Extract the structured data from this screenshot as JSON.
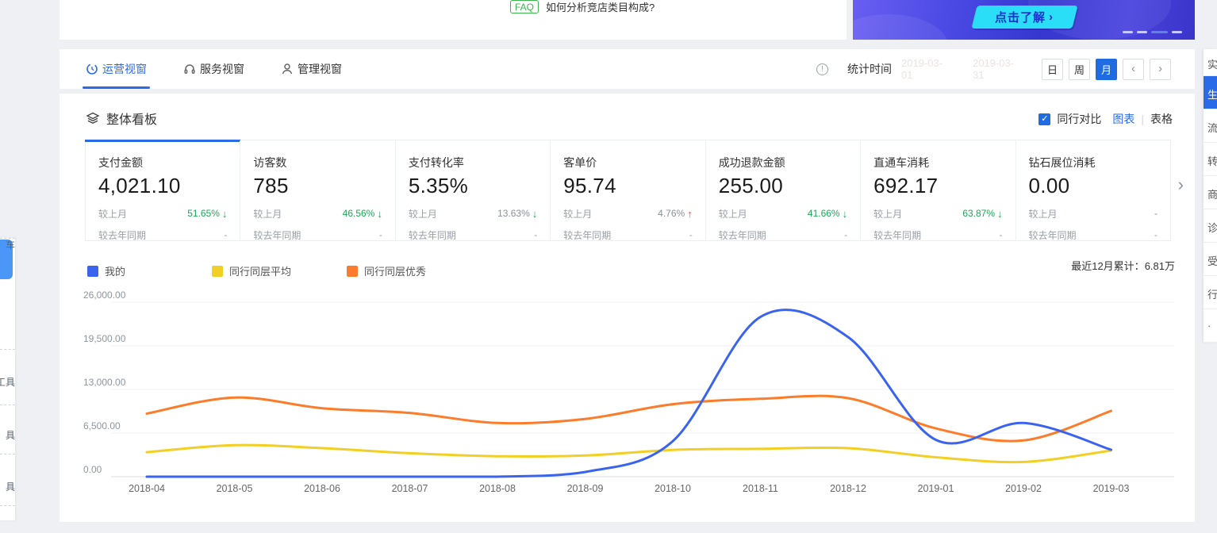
{
  "top_notice": {
    "faq_badge": "FAQ",
    "question": "如何分析竞店类目构成?"
  },
  "banner": {
    "cta": "点击了解",
    "cta_arrow": "›",
    "indicator_count": 4,
    "active_indicator": 2
  },
  "view_tabs": [
    {
      "label": "运营视窗",
      "active": true
    },
    {
      "label": "服务视窗",
      "active": false
    },
    {
      "label": "管理视窗",
      "active": false
    }
  ],
  "stats_time": {
    "info_glyph": "!",
    "label": "统计时间",
    "range_start": "2019-03-01",
    "range_end": "2019-03-31",
    "granularity": [
      "日",
      "周",
      "月"
    ],
    "active_granularity": "月",
    "prev_glyph": "‹",
    "next_glyph": "›"
  },
  "board": {
    "title": "整体看板",
    "compare_checked": true,
    "compare_label": "同行对比",
    "chart_toggle": "图表",
    "table_toggle": "表格",
    "toggle_separator": "|",
    "summary_label": "最近12月累计：",
    "summary_value": "6.81万",
    "next_cards_glyph": "›"
  },
  "metrics": [
    {
      "name": "支付金额",
      "value": "4,021.10",
      "mom_label": "较上月",
      "mom_value": "51.65%",
      "mom_dir": "down",
      "mom_green": true,
      "yoy_label": "较去年同期",
      "yoy_value": "-",
      "selected": true
    },
    {
      "name": "访客数",
      "value": "785",
      "mom_label": "较上月",
      "mom_value": "46.56%",
      "mom_dir": "down",
      "mom_green": true,
      "yoy_label": "较去年同期",
      "yoy_value": "-",
      "selected": false
    },
    {
      "name": "支付转化率",
      "value": "5.35%",
      "mom_label": "较上月",
      "mom_value": "13.63%",
      "mom_dir": "down",
      "mom_green": false,
      "yoy_label": "较去年同期",
      "yoy_value": "-",
      "selected": false
    },
    {
      "name": "客单价",
      "value": "95.74",
      "mom_label": "较上月",
      "mom_value": "4.76%",
      "mom_dir": "up",
      "mom_green": false,
      "yoy_label": "较去年同期",
      "yoy_value": "-",
      "selected": false
    },
    {
      "name": "成功退款金额",
      "value": "255.00",
      "mom_label": "较上月",
      "mom_value": "41.66%",
      "mom_dir": "down",
      "mom_green": true,
      "yoy_label": "较去年同期",
      "yoy_value": "-",
      "selected": false
    },
    {
      "name": "直通车消耗",
      "value": "692.17",
      "mom_label": "较上月",
      "mom_value": "63.87%",
      "mom_dir": "down",
      "mom_green": true,
      "yoy_label": "较去年同期",
      "yoy_value": "-",
      "selected": false
    },
    {
      "name": "钻石展位消耗",
      "value": "0.00",
      "mom_label": "较上月",
      "mom_value": "-",
      "mom_dir": "",
      "mom_green": false,
      "yoy_label": "较去年同期",
      "yoy_value": "-",
      "selected": false
    }
  ],
  "chart_data": {
    "type": "line",
    "x": [
      "2018-04",
      "2018-05",
      "2018-06",
      "2018-07",
      "2018-08",
      "2018-09",
      "2018-10",
      "2018-11",
      "2018-12",
      "2019-01",
      "2019-02",
      "2019-03"
    ],
    "series": [
      {
        "name": "我的",
        "color": "#3b64ee",
        "values": [
          0,
          0,
          0,
          0,
          0,
          700,
          5300,
          23800,
          20800,
          5500,
          8000,
          4021.1
        ]
      },
      {
        "name": "同行同层平均",
        "color": "#f2cf25",
        "values": [
          3650,
          4700,
          4250,
          3500,
          3050,
          3150,
          4000,
          4150,
          4250,
          2900,
          2200,
          3900
        ]
      },
      {
        "name": "同行同层优秀",
        "color": "#fb7c2a",
        "values": [
          9400,
          11800,
          10200,
          9500,
          8000,
          8600,
          10800,
          11600,
          11700,
          7200,
          5400,
          9800
        ]
      }
    ],
    "ylim": [
      0,
      26000
    ],
    "yticks": [
      0,
      6500,
      13000,
      19500,
      26000
    ],
    "ytick_labels": [
      "0.00",
      "6,500.00",
      "13,000.00",
      "19,500.00",
      "26,000.00"
    ],
    "grid": true,
    "legend_position": "top-left"
  },
  "left_rail": {
    "items": [
      "工具",
      "具",
      "具",
      "车"
    ]
  },
  "right_rail": {
    "items": [
      {
        "label": "实",
        "active": false
      },
      {
        "label": "生",
        "active": true
      },
      {
        "label": "流",
        "active": false
      },
      {
        "label": "转",
        "active": false
      },
      {
        "label": "商",
        "active": false
      },
      {
        "label": "诊",
        "active": false
      },
      {
        "label": "受",
        "active": false
      },
      {
        "label": "行",
        "active": false
      },
      {
        "label": "·",
        "active": false
      }
    ]
  }
}
